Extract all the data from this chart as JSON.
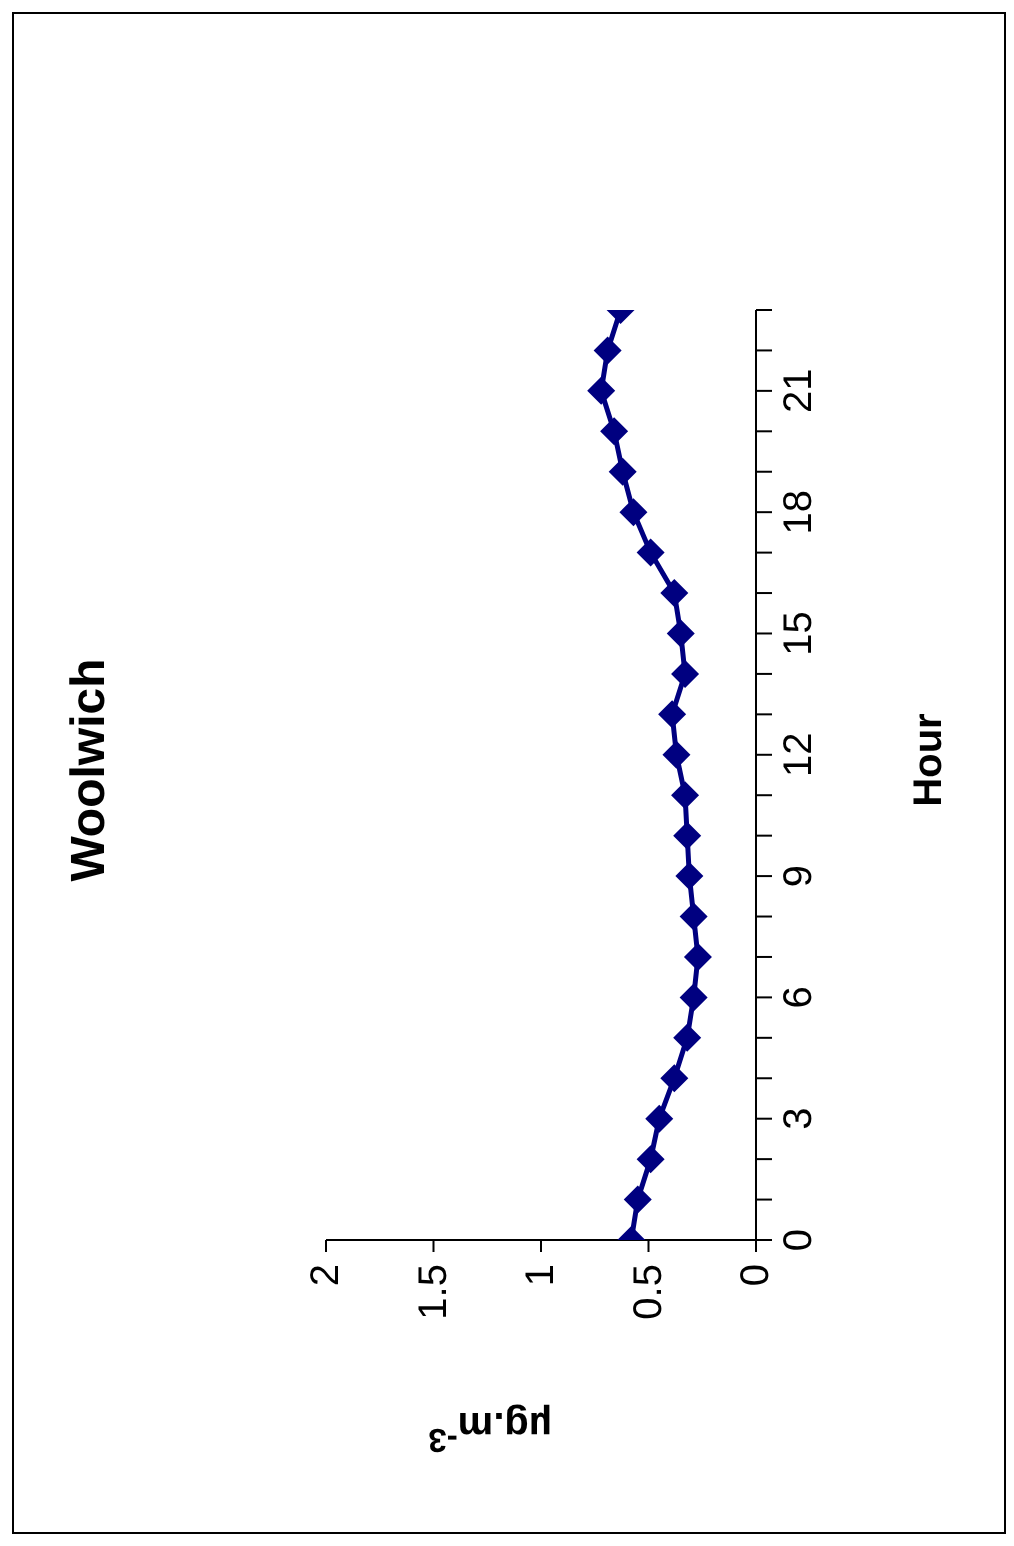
{
  "chart_data": {
    "type": "line",
    "orientation": "horizontal",
    "title": "Woolwich",
    "xlabel": "µg.m$^{-3}$",
    "ylabel": "Hour",
    "x": [
      0,
      1,
      2,
      3,
      4,
      5,
      6,
      7,
      8,
      9,
      10,
      11,
      12,
      13,
      14,
      15,
      16,
      17,
      18,
      19,
      20,
      21,
      22,
      23
    ],
    "series": [
      {
        "color": "#000080",
        "values": [
          0.58,
          0.55,
          0.49,
          0.45,
          0.38,
          0.32,
          0.29,
          0.27,
          0.29,
          0.31,
          0.32,
          0.33,
          0.37,
          0.39,
          0.33,
          0.35,
          0.38,
          0.49,
          0.57,
          0.62,
          0.66,
          0.72,
          0.69,
          0.63
        ]
      }
    ],
    "ylim": [
      0,
      23
    ],
    "yticks": [
      0,
      {
        "value": 1,
        "label": null
      },
      {
        "value": 2,
        "label": null
      },
      3,
      {
        "value": 4,
        "label": null
      },
      {
        "value": 5,
        "label": null
      },
      6,
      {
        "value": 7,
        "label": null
      },
      {
        "value": 8,
        "label": null
      },
      9,
      {
        "value": 10,
        "label": null
      },
      {
        "value": 11,
        "label": null
      },
      12,
      {
        "value": 13,
        "label": null
      },
      {
        "value": 14,
        "label": null
      },
      15,
      {
        "value": 16,
        "label": null
      },
      {
        "value": 17,
        "label": null
      },
      18,
      {
        "value": 19,
        "label": null
      },
      {
        "value": 20,
        "label": null
      },
      21,
      {
        "value": 22,
        "label": null
      },
      {
        "value": 23,
        "label": null
      }
    ],
    "xlim": [
      2,
      0
    ],
    "xticks": [
      0,
      0.5,
      1,
      1.5,
      2
    ],
    "grid": false,
    "legend": false,
    "marker": "diamond",
    "line_style": "solid"
  }
}
